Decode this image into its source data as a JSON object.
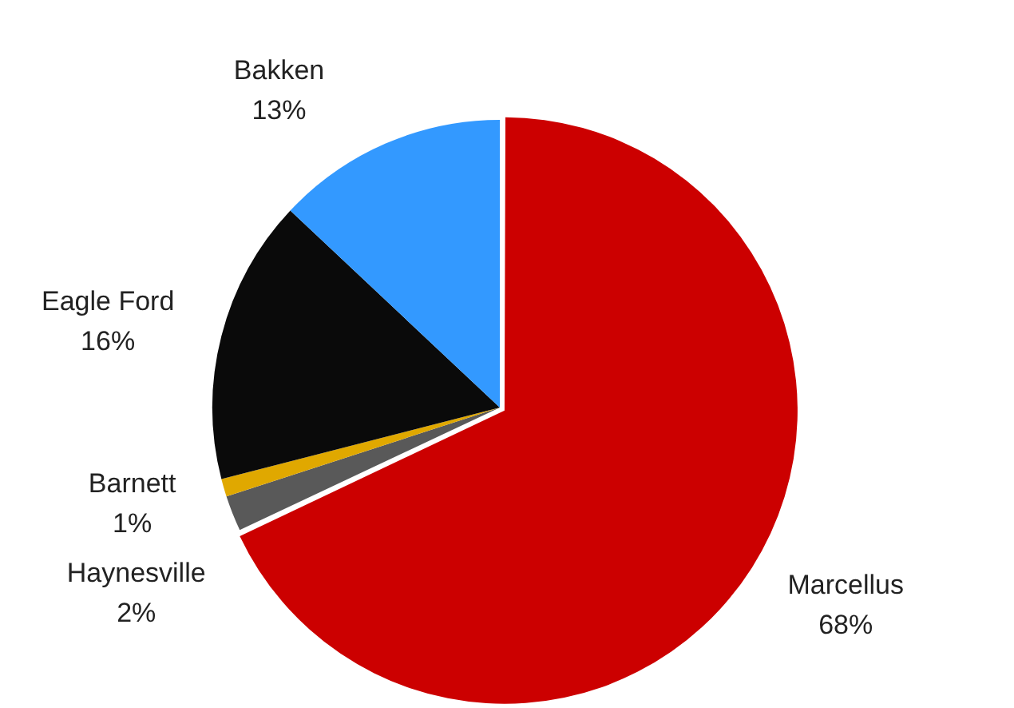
{
  "chart_data": {
    "type": "pie",
    "categories": [
      "Marcellus",
      "Haynesville",
      "Barnett",
      "Eagle Ford",
      "Bakken"
    ],
    "values": [
      68,
      2,
      1,
      16,
      13
    ],
    "colors": [
      "#cc0000",
      "#595959",
      "#e0a800",
      "#0a0a0a",
      "#3399ff"
    ],
    "value_labels": [
      "68%",
      "2%",
      "1%",
      "16%",
      "13%"
    ],
    "legend": false
  }
}
